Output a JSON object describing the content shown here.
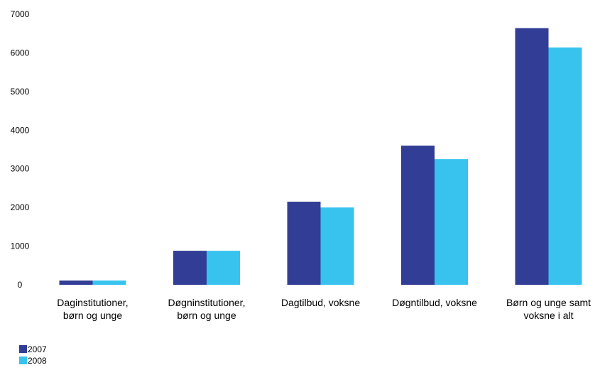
{
  "chart_data": {
    "type": "bar",
    "categories": [
      [
        "Daginstitutioner,",
        "børn og unge"
      ],
      [
        "Døgninstitutioner,",
        "børn og unge"
      ],
      [
        "Dagtilbud, voksne"
      ],
      [
        "Døgntilbud, voksne"
      ],
      [
        "Børn og unge samt",
        "voksne i alt"
      ]
    ],
    "series": [
      {
        "name": "2007",
        "color": "#323e96",
        "values": [
          110,
          880,
          2150,
          3600,
          6640
        ]
      },
      {
        "name": "2008",
        "color": "#37c3ee",
        "values": [
          110,
          880,
          2000,
          3250,
          6140
        ]
      }
    ],
    "ylim": [
      0,
      7000
    ],
    "yticks": [
      "0",
      "1000",
      "2000",
      "3000",
      "4000",
      "5000",
      "6000",
      "7000"
    ],
    "grid": false,
    "legend_position": "bottom-left",
    "title": "",
    "xlabel": "",
    "ylabel": ""
  }
}
